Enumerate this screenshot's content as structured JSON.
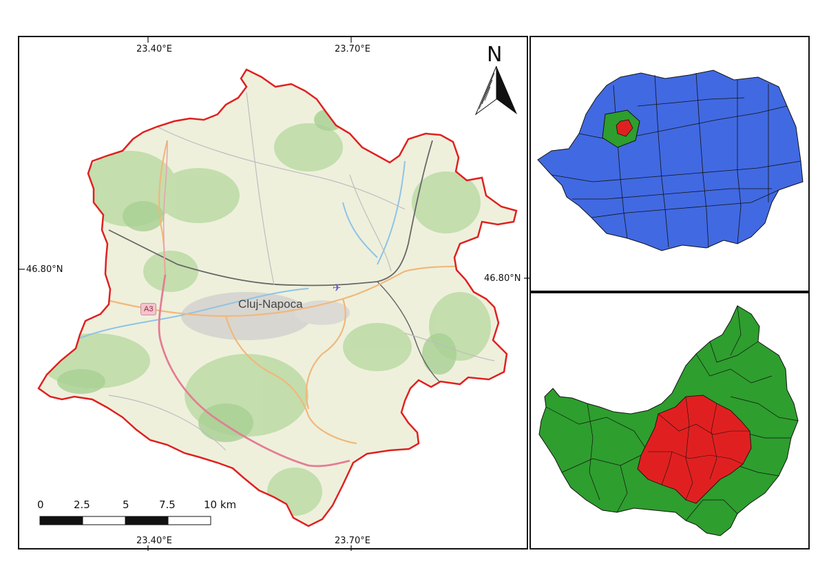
{
  "main_map": {
    "city_label": "Cluj-Napoca",
    "road_label": "A3",
    "boundary_color": "#e02020",
    "north_label": "N",
    "coords": {
      "top_left": "23.40°E",
      "top_right": "23.70°E",
      "bottom_left": "23.40°E",
      "bottom_right": "23.70°E",
      "left": "46.80°N",
      "right": "46.80°N"
    },
    "scale_bar": {
      "labels": [
        "0",
        "2.5",
        "5",
        "7.5",
        "10 km"
      ]
    }
  },
  "inset_country": {
    "fill_color": "#4169e1",
    "county_color": "#2e9e2e",
    "highlight_color": "#e02020"
  },
  "inset_county": {
    "fill_color": "#2e9e2e",
    "highlight_color": "#e02020"
  },
  "icons": [
    "north-arrow-icon",
    "airport-icon"
  ]
}
